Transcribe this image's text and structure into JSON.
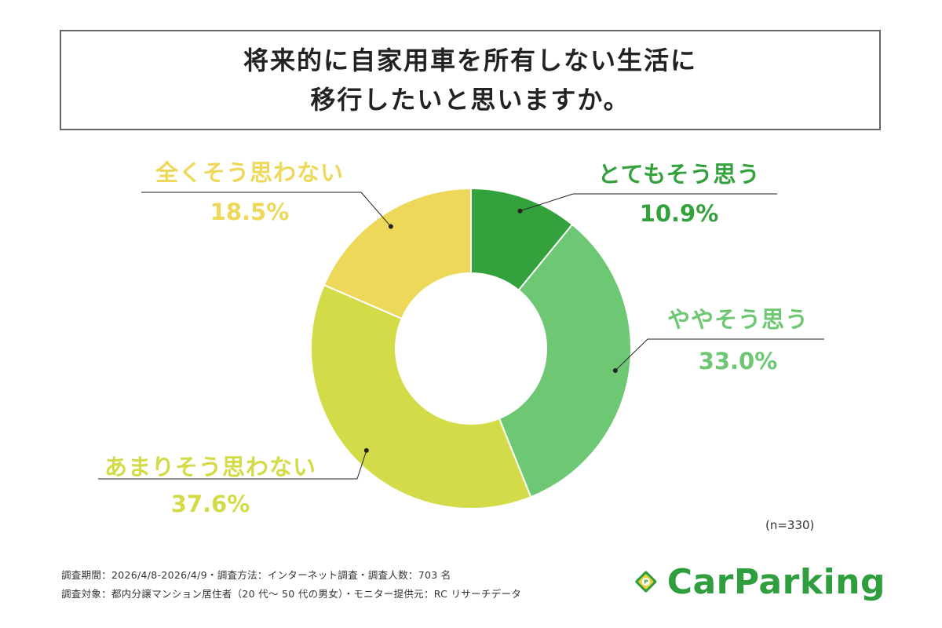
{
  "title": {
    "line1": "将来的に自家用車を所有しない生活に",
    "line2": "移行したいと思いますか。"
  },
  "chart_data": {
    "type": "pie",
    "categories": [
      "とてもそう思う",
      "ややそう思う",
      "あまりそう思わない",
      "全くそう思わない"
    ],
    "values": [
      10.9,
      33.0,
      37.6,
      18.5
    ],
    "value_labels": [
      "10.9%",
      "33.0%",
      "37.6%",
      "18.5%"
    ],
    "colors": [
      "#34a23c",
      "#6ec873",
      "#d3dc48",
      "#edd85a"
    ],
    "label_colors": [
      "#34a23c",
      "#6ec873",
      "#d3dc48",
      "#edd85a"
    ],
    "note": "(n=330)"
  },
  "footer": {
    "line1": "調査期間：2026/4/8-2026/4/9・調査方法：インターネット調査・調査人数：703 名",
    "line2": "調査対象：都内分譲マンション居住者（20 代〜 50 代の男女）・モニター提供元：RC リサーチデータ"
  },
  "logo": {
    "text": "CarParking",
    "mark_letter": "P",
    "mark_color": "#2f9e3e",
    "mark_accent": "#e8d33a"
  }
}
